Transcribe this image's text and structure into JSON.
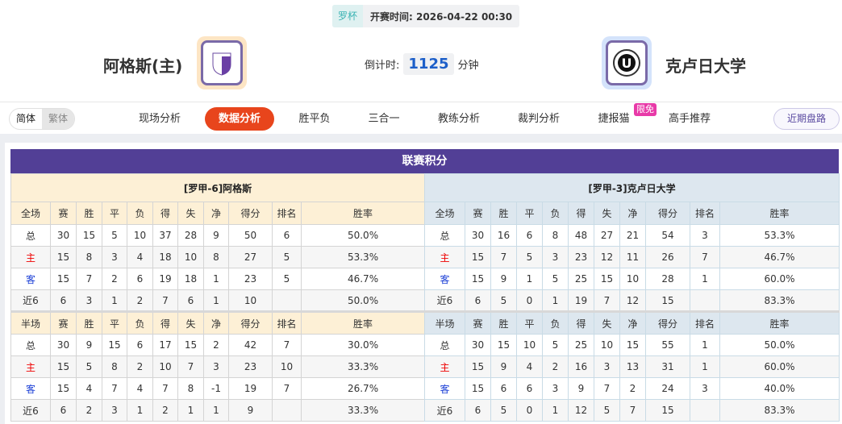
{
  "match": {
    "league": "罗杯",
    "start_label": "开赛时间:",
    "start_time": "2026-04-22 00:30",
    "home": "阿格斯(主)",
    "away": "克卢日大学",
    "countdown_label": "倒计时:",
    "countdown": "1125",
    "countdown_unit": "分钟"
  },
  "nav": {
    "lang": [
      "简体",
      "繁体"
    ],
    "tabs": [
      "现场分析",
      "数据分析",
      "胜平负",
      "三合一",
      "教练分析",
      "裁判分析",
      "捷报猫",
      "高手推荐"
    ],
    "active": "数据分析",
    "badge": "限免",
    "recent": "近期盘路"
  },
  "colors": {
    "title_bar": "#523f96",
    "active_tab": "#e8451c",
    "home_header": "#fdf0d6",
    "away_header": "#dde7ef"
  },
  "standings": {
    "title": "联赛积分",
    "columns_full": [
      "全场",
      "赛",
      "胜",
      "平",
      "负",
      "得",
      "失",
      "净",
      "得分",
      "排名",
      "胜率"
    ],
    "columns_half": [
      "半场",
      "赛",
      "胜",
      "平",
      "负",
      "得",
      "失",
      "净",
      "得分",
      "排名",
      "胜率"
    ],
    "home": {
      "name": "[罗甲-6]阿格斯",
      "full": [
        [
          "总",
          "30",
          "15",
          "5",
          "10",
          "37",
          "28",
          "9",
          "50",
          "6",
          "50.0%"
        ],
        [
          "主",
          "15",
          "8",
          "3",
          "4",
          "18",
          "10",
          "8",
          "27",
          "5",
          "53.3%"
        ],
        [
          "客",
          "15",
          "7",
          "2",
          "6",
          "19",
          "18",
          "1",
          "23",
          "5",
          "46.7%"
        ],
        [
          "近6",
          "6",
          "3",
          "1",
          "2",
          "7",
          "6",
          "1",
          "10",
          "",
          "50.0%"
        ]
      ],
      "half": [
        [
          "总",
          "30",
          "9",
          "15",
          "6",
          "17",
          "15",
          "2",
          "42",
          "7",
          "30.0%"
        ],
        [
          "主",
          "15",
          "5",
          "8",
          "2",
          "10",
          "7",
          "3",
          "23",
          "10",
          "33.3%"
        ],
        [
          "客",
          "15",
          "4",
          "7",
          "4",
          "7",
          "8",
          "-1",
          "19",
          "7",
          "26.7%"
        ],
        [
          "近6",
          "6",
          "2",
          "3",
          "1",
          "2",
          "1",
          "1",
          "9",
          "",
          "33.3%"
        ]
      ]
    },
    "away": {
      "name": "[罗甲-3]克卢日大学",
      "full": [
        [
          "总",
          "30",
          "16",
          "6",
          "8",
          "48",
          "27",
          "21",
          "54",
          "3",
          "53.3%"
        ],
        [
          "主",
          "15",
          "7",
          "5",
          "3",
          "23",
          "12",
          "11",
          "26",
          "7",
          "46.7%"
        ],
        [
          "客",
          "15",
          "9",
          "1",
          "5",
          "25",
          "15",
          "10",
          "28",
          "1",
          "60.0%"
        ],
        [
          "近6",
          "6",
          "5",
          "0",
          "1",
          "19",
          "7",
          "12",
          "15",
          "",
          "83.3%"
        ]
      ],
      "half": [
        [
          "总",
          "30",
          "15",
          "10",
          "5",
          "25",
          "10",
          "15",
          "55",
          "1",
          "50.0%"
        ],
        [
          "主",
          "15",
          "9",
          "4",
          "2",
          "16",
          "3",
          "13",
          "31",
          "1",
          "60.0%"
        ],
        [
          "客",
          "15",
          "6",
          "6",
          "3",
          "9",
          "7",
          "2",
          "24",
          "3",
          "40.0%"
        ],
        [
          "近6",
          "6",
          "5",
          "0",
          "1",
          "12",
          "5",
          "7",
          "15",
          "",
          "83.3%"
        ]
      ]
    }
  }
}
